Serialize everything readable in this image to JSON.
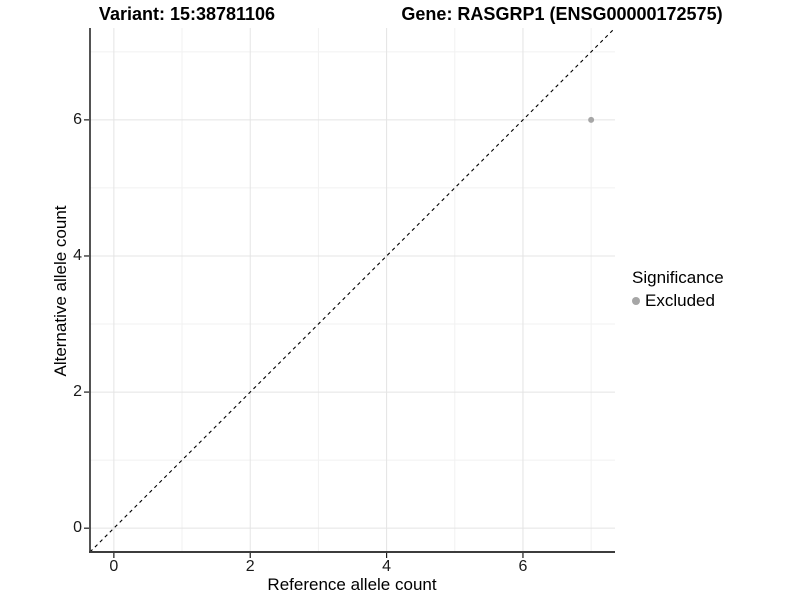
{
  "chart_data": {
    "type": "scatter",
    "title_left": "Variant: 15:38781106",
    "title_right": "Gene: RASGRP1 (ENSG00000172575)",
    "xlabel": "Reference allele count",
    "ylabel": "Alternative allele count",
    "xlim": [
      -0.35,
      7.35
    ],
    "ylim": [
      -0.35,
      7.35
    ],
    "x_ticks": [
      0,
      2,
      4,
      6
    ],
    "y_ticks": [
      0,
      2,
      4,
      6
    ],
    "x_minor_ticks": [
      1,
      3,
      5,
      7
    ],
    "y_minor_ticks": [
      1,
      3,
      5,
      7
    ],
    "grid": "major+minor",
    "reference_line": {
      "kind": "identity",
      "equation": "y = x",
      "style": "dashed",
      "color": "#000000"
    },
    "series": [
      {
        "name": "Excluded",
        "color": "#a6a6a6",
        "points": [
          {
            "x": 7,
            "y": 6
          }
        ]
      }
    ],
    "legend": {
      "title": "Significance",
      "position": "right",
      "entries": [
        {
          "label": "Excluded",
          "color": "#a6a6a6",
          "marker": "circle"
        }
      ]
    }
  },
  "colors": {
    "background": "#ffffff",
    "grid_major": "#e4e4e4",
    "grid_minor": "#f1f1f1",
    "axis_line_y": "#1a1a1a",
    "axis_line_x": "#3c3c3c",
    "tick_mark": "#1a1a1a",
    "point": "#a6a6a6"
  }
}
